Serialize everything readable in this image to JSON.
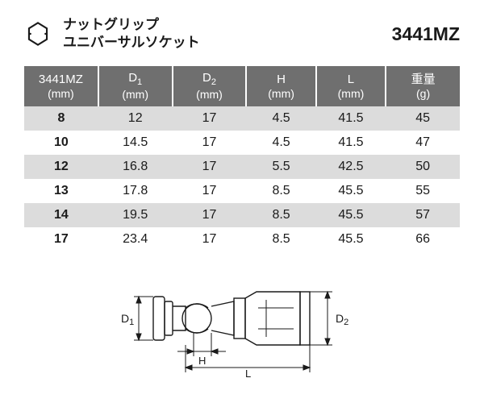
{
  "header": {
    "title_line1": "ナットグリップ",
    "title_line2": "ユニバーサルソケット",
    "model": "3441MZ"
  },
  "table": {
    "header_bg": "#6f6f6f",
    "header_fg": "#ffffff",
    "row_odd_bg": "#dcdcdc",
    "row_even_bg": "#ffffff",
    "columns": [
      {
        "main": "3441MZ",
        "unit": "(mm)",
        "width": "17%"
      },
      {
        "main": "D1",
        "unit": "(mm)",
        "width": "17%",
        "subscript": "1"
      },
      {
        "main": "D2",
        "unit": "(mm)",
        "width": "17%",
        "subscript": "2"
      },
      {
        "main": "H",
        "unit": "(mm)",
        "width": "16%"
      },
      {
        "main": "L",
        "unit": "(mm)",
        "width": "16%"
      },
      {
        "main": "重量",
        "unit": "(g)",
        "width": "17%"
      }
    ],
    "rows": [
      [
        "8",
        "12",
        "17",
        "4.5",
        "41.5",
        "45"
      ],
      [
        "10",
        "14.5",
        "17",
        "4.5",
        "41.5",
        "47"
      ],
      [
        "12",
        "16.8",
        "17",
        "5.5",
        "42.5",
        "50"
      ],
      [
        "13",
        "17.8",
        "17",
        "8.5",
        "45.5",
        "55"
      ],
      [
        "14",
        "19.5",
        "17",
        "8.5",
        "45.5",
        "57"
      ],
      [
        "17",
        "23.4",
        "17",
        "8.5",
        "45.5",
        "66"
      ]
    ]
  },
  "diagram": {
    "labels": {
      "d1": "D1",
      "d2": "D2",
      "h": "H",
      "l": "L"
    },
    "stroke": "#1a1a1a",
    "stroke_width": 1.2
  }
}
